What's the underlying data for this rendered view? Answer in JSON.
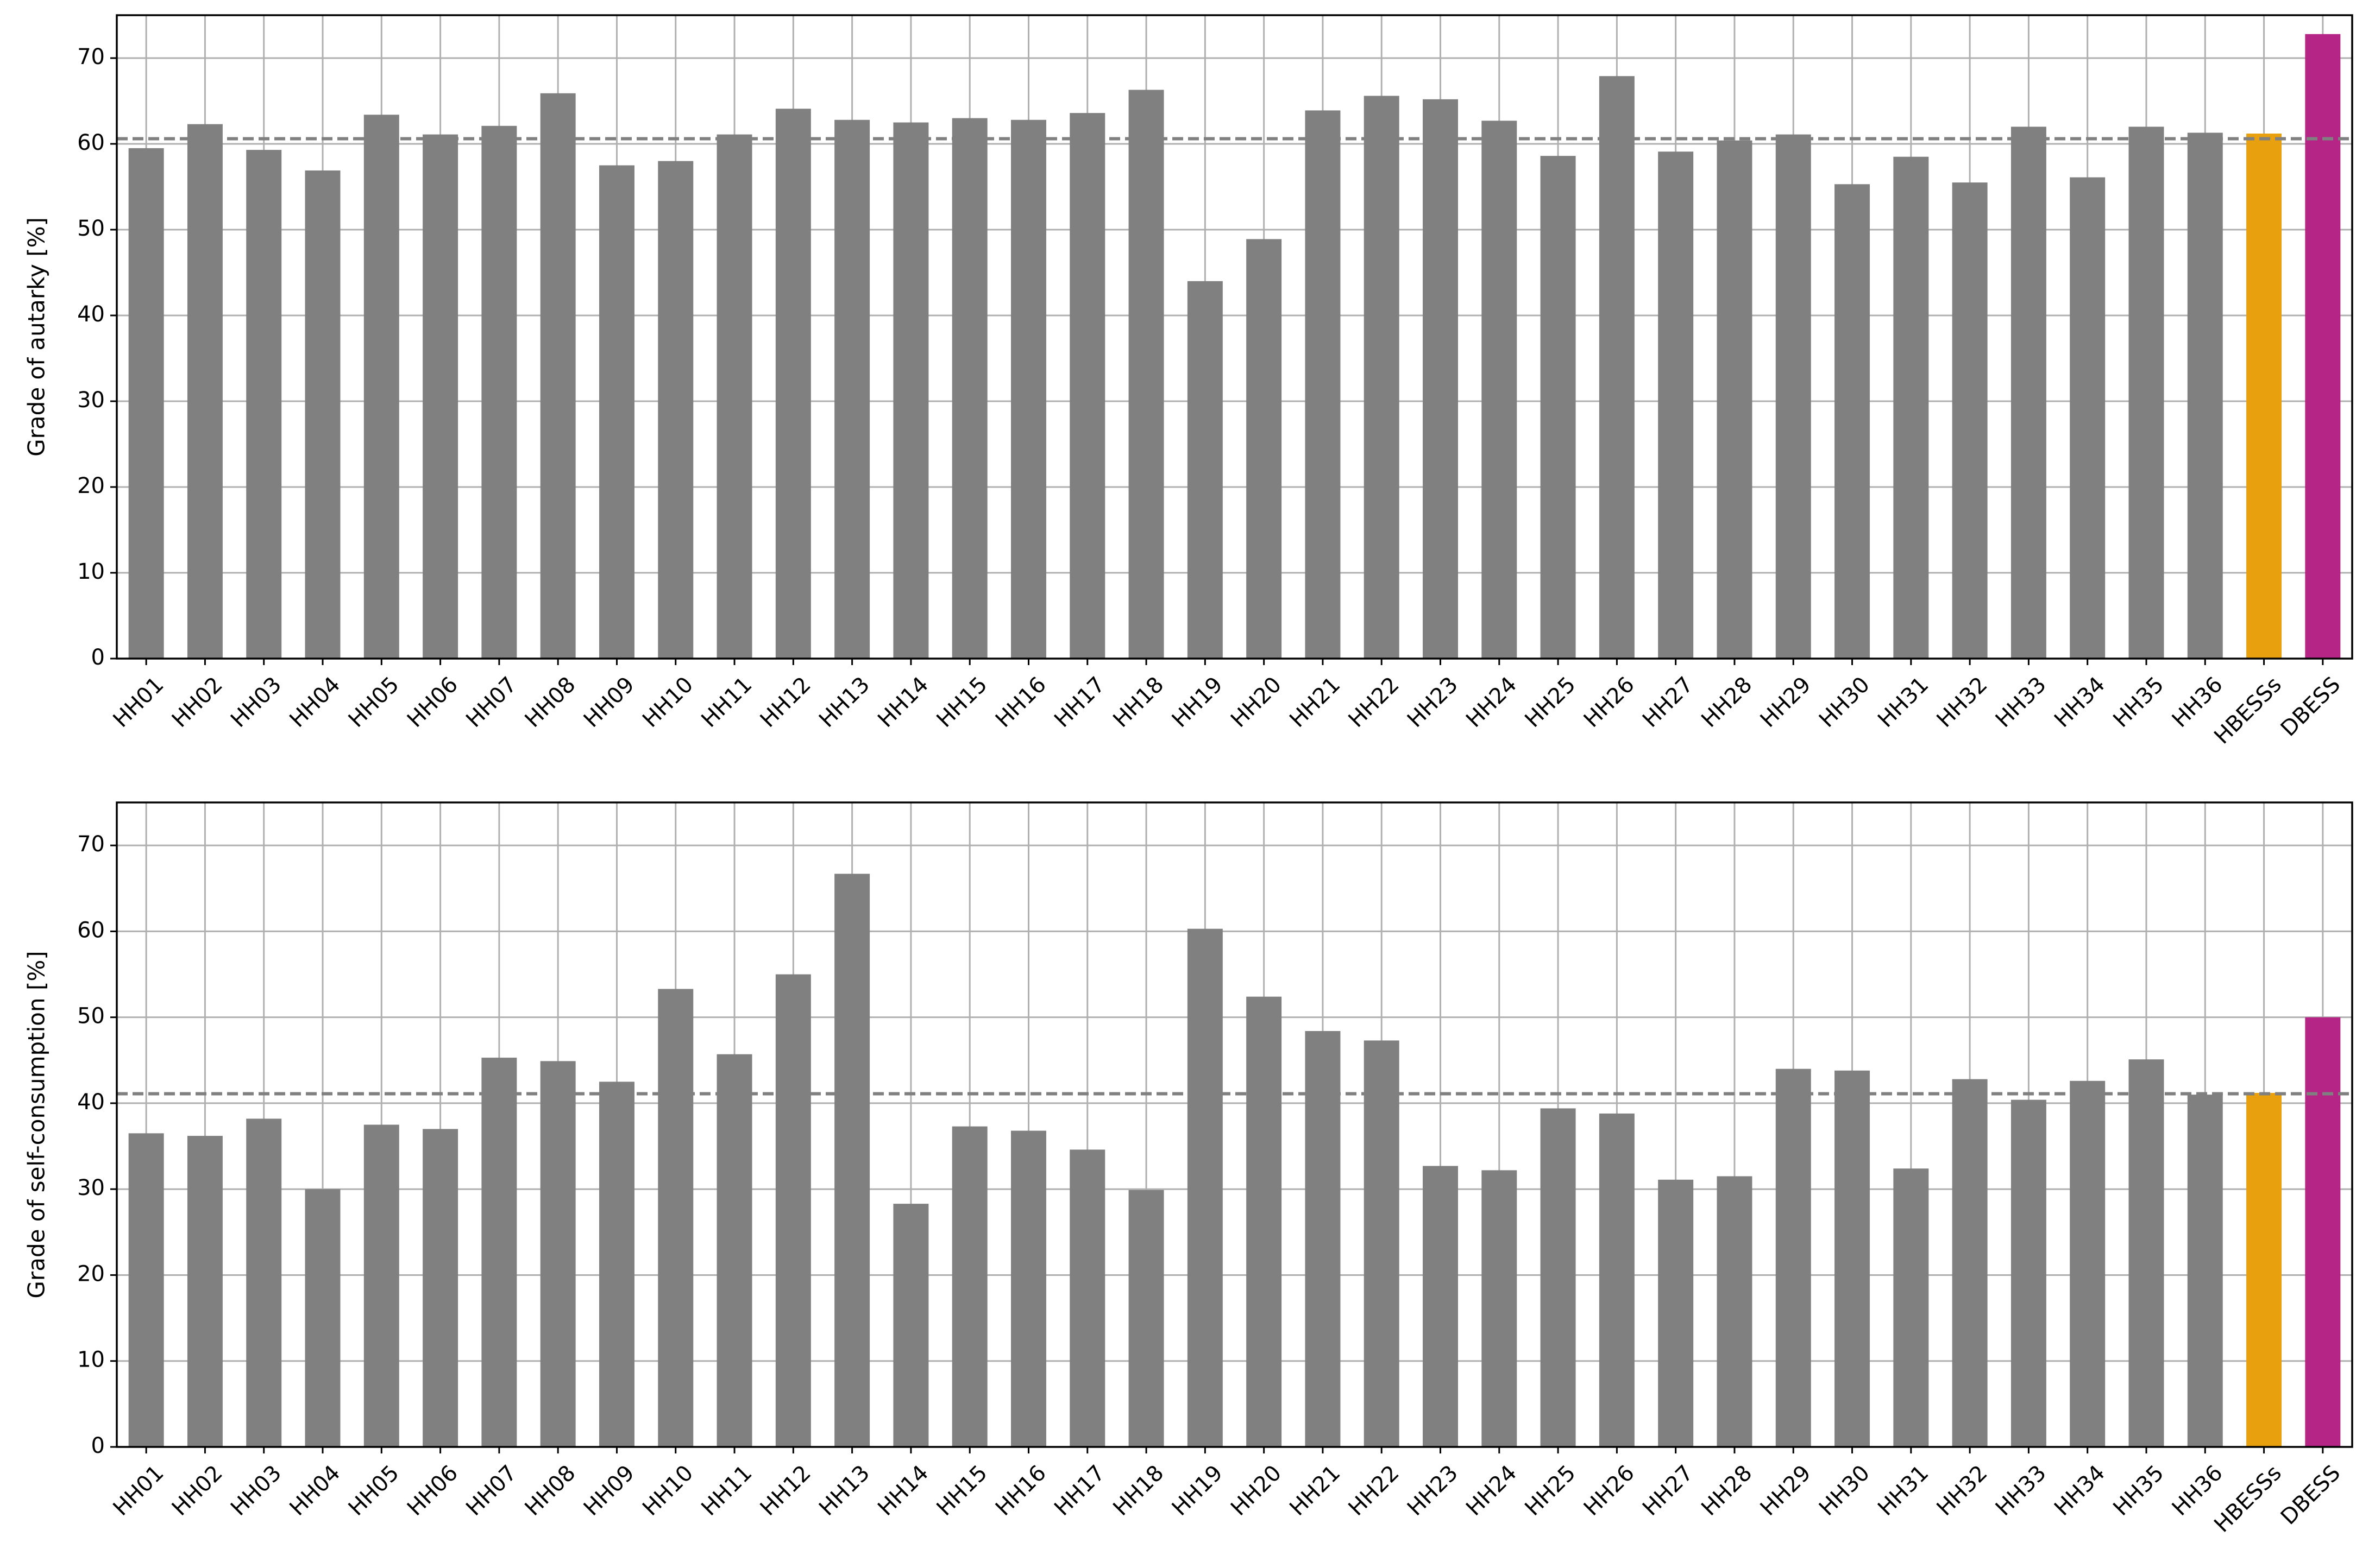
{
  "chart_data": [
    {
      "type": "bar",
      "ylabel": "Grade of autarky [%]",
      "categories": [
        "HH01",
        "HH02",
        "HH03",
        "HH04",
        "HH05",
        "HH06",
        "HH07",
        "HH08",
        "HH09",
        "HH10",
        "HH11",
        "HH12",
        "HH13",
        "HH14",
        "HH15",
        "HH16",
        "HH17",
        "HH18",
        "HH19",
        "HH20",
        "HH21",
        "HH22",
        "HH23",
        "HH24",
        "HH25",
        "HH26",
        "HH27",
        "HH28",
        "HH29",
        "HH30",
        "HH31",
        "HH32",
        "HH33",
        "HH34",
        "HH35",
        "HH36",
        "HBESSs",
        "DBESS"
      ],
      "values": [
        59.5,
        62.3,
        59.3,
        56.9,
        63.4,
        61.1,
        62.1,
        65.9,
        57.5,
        58.0,
        61.1,
        64.1,
        62.8,
        62.5,
        63.0,
        62.8,
        63.6,
        66.3,
        44.0,
        48.9,
        63.9,
        65.6,
        65.2,
        62.7,
        58.6,
        67.9,
        59.1,
        60.4,
        61.1,
        55.3,
        58.5,
        55.5,
        62.0,
        56.1,
        62.0,
        61.3,
        61.2,
        72.8
      ],
      "colors": [
        "#808080",
        "#808080",
        "#808080",
        "#808080",
        "#808080",
        "#808080",
        "#808080",
        "#808080",
        "#808080",
        "#808080",
        "#808080",
        "#808080",
        "#808080",
        "#808080",
        "#808080",
        "#808080",
        "#808080",
        "#808080",
        "#808080",
        "#808080",
        "#808080",
        "#808080",
        "#808080",
        "#808080",
        "#808080",
        "#808080",
        "#808080",
        "#808080",
        "#808080",
        "#808080",
        "#808080",
        "#808080",
        "#808080",
        "#808080",
        "#808080",
        "#808080",
        "#e8a00e",
        "#b52585"
      ],
      "ylim": [
        0,
        75
      ],
      "yticks": [
        0,
        10,
        20,
        30,
        40,
        50,
        60,
        70
      ],
      "grid": true,
      "reference_line": 60.6
    },
    {
      "type": "bar",
      "ylabel": "Grade of self-consumption [%]",
      "categories": [
        "HH01",
        "HH02",
        "HH03",
        "HH04",
        "HH05",
        "HH06",
        "HH07",
        "HH08",
        "HH09",
        "HH10",
        "HH11",
        "HH12",
        "HH13",
        "HH14",
        "HH15",
        "HH16",
        "HH17",
        "HH18",
        "HH19",
        "HH20",
        "HH21",
        "HH22",
        "HH23",
        "HH24",
        "HH25",
        "HH26",
        "HH27",
        "HH28",
        "HH29",
        "HH30",
        "HH31",
        "HH32",
        "HH33",
        "HH34",
        "HH35",
        "HH36",
        "HBESSs",
        "DBESS"
      ],
      "values": [
        36.5,
        36.2,
        38.2,
        30.0,
        37.5,
        37.0,
        45.3,
        44.9,
        42.5,
        53.3,
        45.7,
        55.0,
        66.7,
        28.3,
        37.3,
        36.8,
        34.6,
        29.9,
        60.3,
        52.4,
        48.4,
        47.3,
        32.7,
        32.2,
        39.4,
        38.8,
        31.1,
        31.5,
        44.0,
        43.8,
        32.4,
        42.8,
        40.4,
        42.6,
        45.1,
        41.0,
        41.2,
        50.0
      ],
      "colors": [
        "#808080",
        "#808080",
        "#808080",
        "#808080",
        "#808080",
        "#808080",
        "#808080",
        "#808080",
        "#808080",
        "#808080",
        "#808080",
        "#808080",
        "#808080",
        "#808080",
        "#808080",
        "#808080",
        "#808080",
        "#808080",
        "#808080",
        "#808080",
        "#808080",
        "#808080",
        "#808080",
        "#808080",
        "#808080",
        "#808080",
        "#808080",
        "#808080",
        "#808080",
        "#808080",
        "#808080",
        "#808080",
        "#808080",
        "#808080",
        "#808080",
        "#808080",
        "#e8a00e",
        "#b52585"
      ],
      "ylim": [
        0,
        75
      ],
      "yticks": [
        0,
        10,
        20,
        30,
        40,
        50,
        60,
        70
      ],
      "grid": true,
      "reference_line": 41.1
    }
  ]
}
